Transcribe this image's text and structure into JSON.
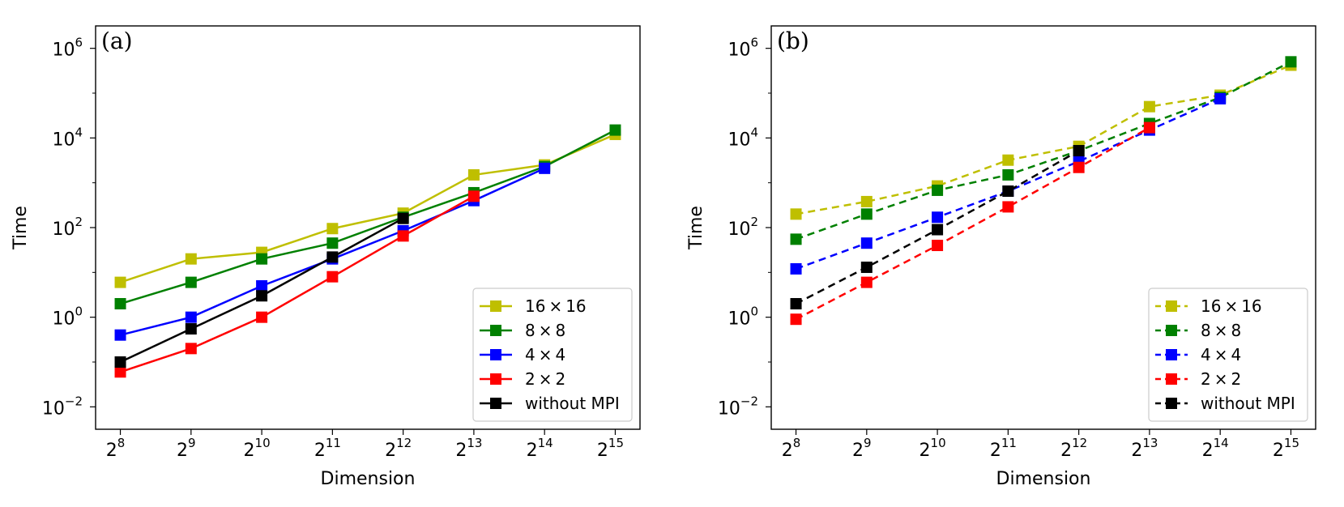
{
  "chart_data": [
    {
      "type": "line",
      "panel_label": "(a)",
      "xlabel": "Dimension",
      "ylabel": "Time",
      "yscale": "log",
      "ylim_exp": [
        -2.5,
        6.5
      ],
      "y_ticks": [
        {
          "base": "10",
          "exp": "6"
        },
        {
          "base": "10",
          "exp": "4"
        },
        {
          "base": "10",
          "exp": "2"
        },
        {
          "base": "10",
          "exp": "0"
        },
        {
          "base": "10",
          "exp": "−2"
        }
      ],
      "y_tick_exps": [
        6,
        4,
        2,
        0,
        -2
      ],
      "x_ticks": [
        {
          "base": "2",
          "exp": "8"
        },
        {
          "base": "2",
          "exp": "9"
        },
        {
          "base": "2",
          "exp": "10"
        },
        {
          "base": "2",
          "exp": "11"
        },
        {
          "base": "2",
          "exp": "12"
        },
        {
          "base": "2",
          "exp": "13"
        },
        {
          "base": "2",
          "exp": "14"
        },
        {
          "base": "2",
          "exp": "15"
        }
      ],
      "x_exps": [
        8,
        9,
        10,
        11,
        12,
        13,
        14,
        15
      ],
      "line_style": "solid",
      "legend_position": "lower-right",
      "series": [
        {
          "name": "16 × 16",
          "color": "#bfbf00",
          "x": [
            8,
            9,
            10,
            11,
            12,
            13,
            14,
            15
          ],
          "values": [
            6,
            20,
            28,
            95,
            210,
            1500,
            2500,
            12000
          ]
        },
        {
          "name": "8 × 8",
          "color": "#008000",
          "x": [
            8,
            9,
            10,
            11,
            12,
            13,
            14,
            15
          ],
          "values": [
            2,
            6,
            20,
            45,
            170,
            600,
            2300,
            15000
          ]
        },
        {
          "name": "4 × 4",
          "color": "#0000ff",
          "x": [
            8,
            9,
            10,
            11,
            12,
            13,
            14
          ],
          "values": [
            0.4,
            1.0,
            5,
            20,
            85,
            400,
            2100
          ]
        },
        {
          "name": "2 × 2",
          "color": "#ff0000",
          "x": [
            8,
            9,
            10,
            11,
            12,
            13
          ],
          "values": [
            0.06,
            0.2,
            1.0,
            8,
            65,
            500
          ]
        },
        {
          "name": "without MPI",
          "color": "#000000",
          "x": [
            8,
            9,
            10,
            11,
            12
          ],
          "values": [
            0.1,
            0.55,
            3,
            22,
            160
          ]
        }
      ]
    },
    {
      "type": "line",
      "panel_label": "(b)",
      "xlabel": "Dimension",
      "ylabel": "Time",
      "yscale": "log",
      "ylim_exp": [
        -2.5,
        6.5
      ],
      "y_ticks": [
        {
          "base": "10",
          "exp": "6"
        },
        {
          "base": "10",
          "exp": "4"
        },
        {
          "base": "10",
          "exp": "2"
        },
        {
          "base": "10",
          "exp": "0"
        },
        {
          "base": "10",
          "exp": "−2"
        }
      ],
      "y_tick_exps": [
        6,
        4,
        2,
        0,
        -2
      ],
      "x_ticks": [
        {
          "base": "2",
          "exp": "8"
        },
        {
          "base": "2",
          "exp": "9"
        },
        {
          "base": "2",
          "exp": "10"
        },
        {
          "base": "2",
          "exp": "11"
        },
        {
          "base": "2",
          "exp": "12"
        },
        {
          "base": "2",
          "exp": "13"
        },
        {
          "base": "2",
          "exp": "14"
        },
        {
          "base": "2",
          "exp": "15"
        }
      ],
      "x_exps": [
        8,
        9,
        10,
        11,
        12,
        13,
        14,
        15
      ],
      "line_style": "dashed",
      "legend_position": "lower-right",
      "series": [
        {
          "name": "16 × 16",
          "color": "#bfbf00",
          "x": [
            8,
            9,
            10,
            11,
            12,
            13,
            14,
            15
          ],
          "values": [
            200,
            380,
            850,
            3200,
            6500,
            50000,
            90000,
            420000
          ]
        },
        {
          "name": "8 × 8",
          "color": "#008000",
          "x": [
            8,
            9,
            10,
            11,
            12,
            13,
            14,
            15
          ],
          "values": [
            55,
            200,
            680,
            1500,
            5200,
            21000,
            80000,
            500000
          ]
        },
        {
          "name": "4 × 4",
          "color": "#0000ff",
          "x": [
            8,
            9,
            10,
            11,
            12,
            13,
            14
          ],
          "values": [
            12,
            45,
            170,
            650,
            3000,
            15000,
            75000
          ]
        },
        {
          "name": "2 × 2",
          "color": "#ff0000",
          "x": [
            8,
            9,
            10,
            11,
            12,
            13
          ],
          "values": [
            0.9,
            6,
            40,
            290,
            2200,
            17000
          ]
        },
        {
          "name": "without MPI",
          "color": "#000000",
          "x": [
            8,
            9,
            10,
            11,
            12
          ],
          "values": [
            2,
            13,
            90,
            650,
            5200
          ]
        }
      ]
    }
  ]
}
